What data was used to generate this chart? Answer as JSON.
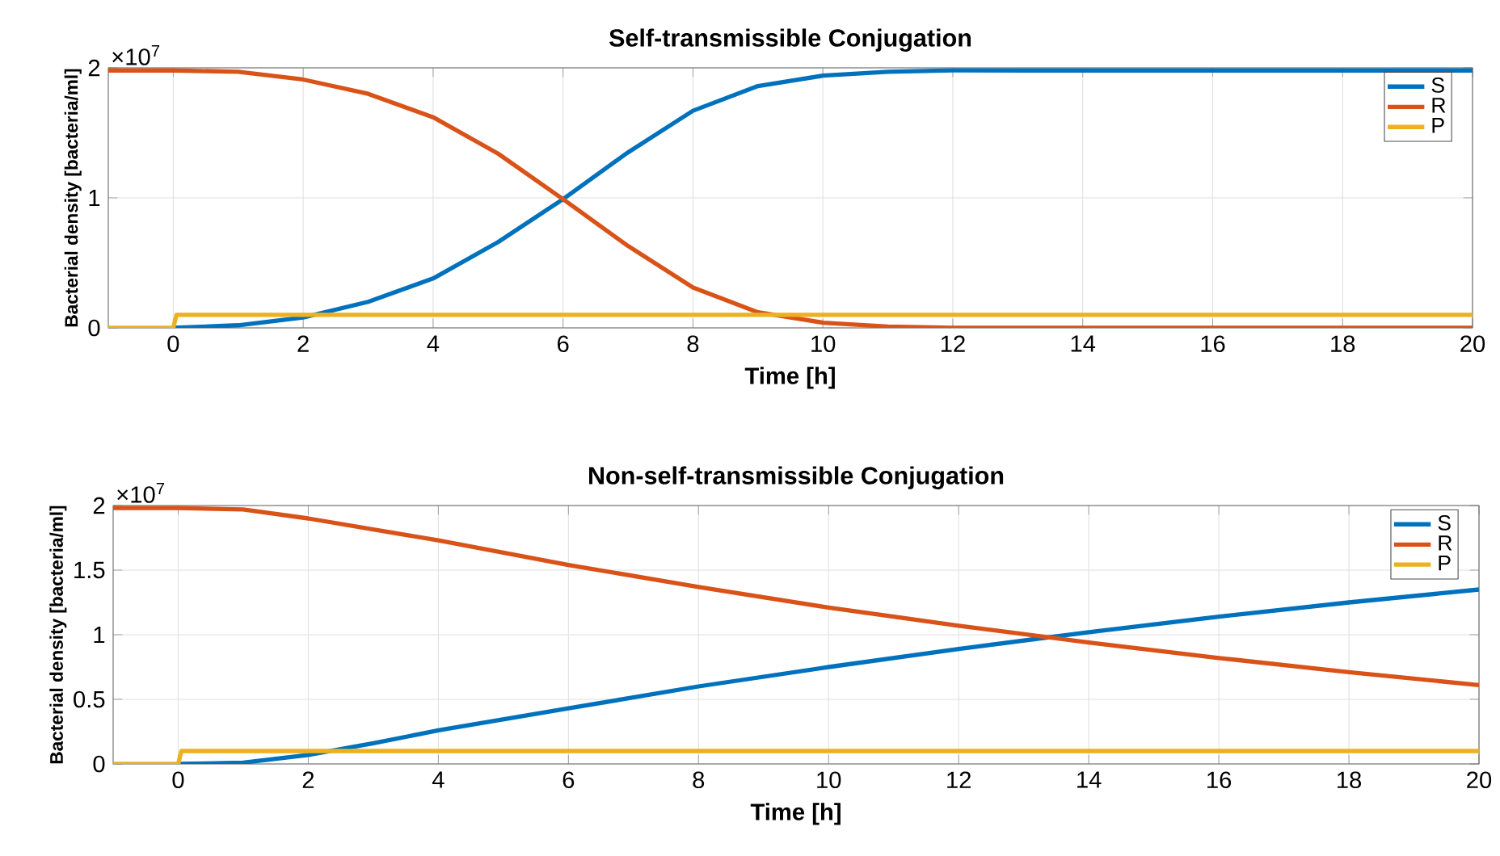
{
  "chart_data": [
    {
      "type": "line",
      "title": "Self-transmissible Conjugation",
      "xlabel": "Time [h]",
      "ylabel": "Bacterial density [bacteria/ml]",
      "annotations": [
        "×10$^{7}$"
      ],
      "xlim": [
        -1,
        20
      ],
      "xticks": [
        0,
        2,
        4,
        6,
        8,
        10,
        12,
        14,
        16,
        18,
        20
      ],
      "ylim": [
        0,
        2
      ],
      "yticks": [
        0,
        1,
        2
      ],
      "grid": true,
      "legend": "top right",
      "series": [
        {
          "name": "S",
          "color": "#0072bd",
          "x": [
            0,
            1,
            2,
            3,
            4,
            5,
            6,
            7,
            8,
            9,
            10,
            11,
            12,
            20
          ],
          "values": [
            0,
            0.02,
            0.08,
            0.2,
            0.38,
            0.66,
            0.99,
            1.35,
            1.67,
            1.86,
            1.94,
            1.97,
            1.98,
            1.98
          ]
        },
        {
          "name": "R",
          "color": "#d95319",
          "x": [
            -1,
            0,
            1,
            2,
            3,
            4,
            5,
            6,
            7,
            8,
            9,
            10,
            11,
            12,
            20
          ],
          "values": [
            1.98,
            1.98,
            1.97,
            1.91,
            1.8,
            1.62,
            1.34,
            0.99,
            0.63,
            0.31,
            0.12,
            0.04,
            0.01,
            0,
            0
          ]
        },
        {
          "name": "P",
          "color": "#edb120",
          "x": [
            -1,
            0,
            0.05,
            20
          ],
          "values": [
            0,
            0,
            0.1,
            0.1
          ]
        }
      ]
    },
    {
      "type": "line",
      "title": "Non-self-transmissible Conjugation",
      "xlabel": "Time [h]",
      "ylabel": "Bacterial density [bacteria/ml]",
      "annotations": [
        "×10$^{7}$"
      ],
      "xlim": [
        -1,
        20
      ],
      "xticks": [
        0,
        2,
        4,
        6,
        8,
        10,
        12,
        14,
        16,
        18,
        20
      ],
      "ylim": [
        0,
        2
      ],
      "yticks": [
        0,
        0.5,
        1,
        1.5,
        2
      ],
      "grid": true,
      "legend": "top right",
      "series": [
        {
          "name": "S",
          "color": "#0072bd",
          "x": [
            0,
            1,
            2,
            3,
            4,
            6,
            8,
            10,
            12,
            14,
            16,
            18,
            20
          ],
          "values": [
            0,
            0.01,
            0.07,
            0.16,
            0.26,
            0.43,
            0.6,
            0.75,
            0.89,
            1.02,
            1.14,
            1.25,
            1.35
          ]
        },
        {
          "name": "R",
          "color": "#d95319",
          "x": [
            -1,
            0,
            1,
            2,
            4,
            6,
            8,
            10,
            12,
            14,
            16,
            18,
            20
          ],
          "values": [
            1.98,
            1.98,
            1.97,
            1.9,
            1.73,
            1.54,
            1.37,
            1.21,
            1.07,
            0.94,
            0.82,
            0.71,
            0.61
          ]
        },
        {
          "name": "P",
          "color": "#edb120",
          "x": [
            -1,
            0,
            0.05,
            20
          ],
          "values": [
            0,
            0,
            0.1,
            0.1
          ]
        }
      ]
    }
  ]
}
